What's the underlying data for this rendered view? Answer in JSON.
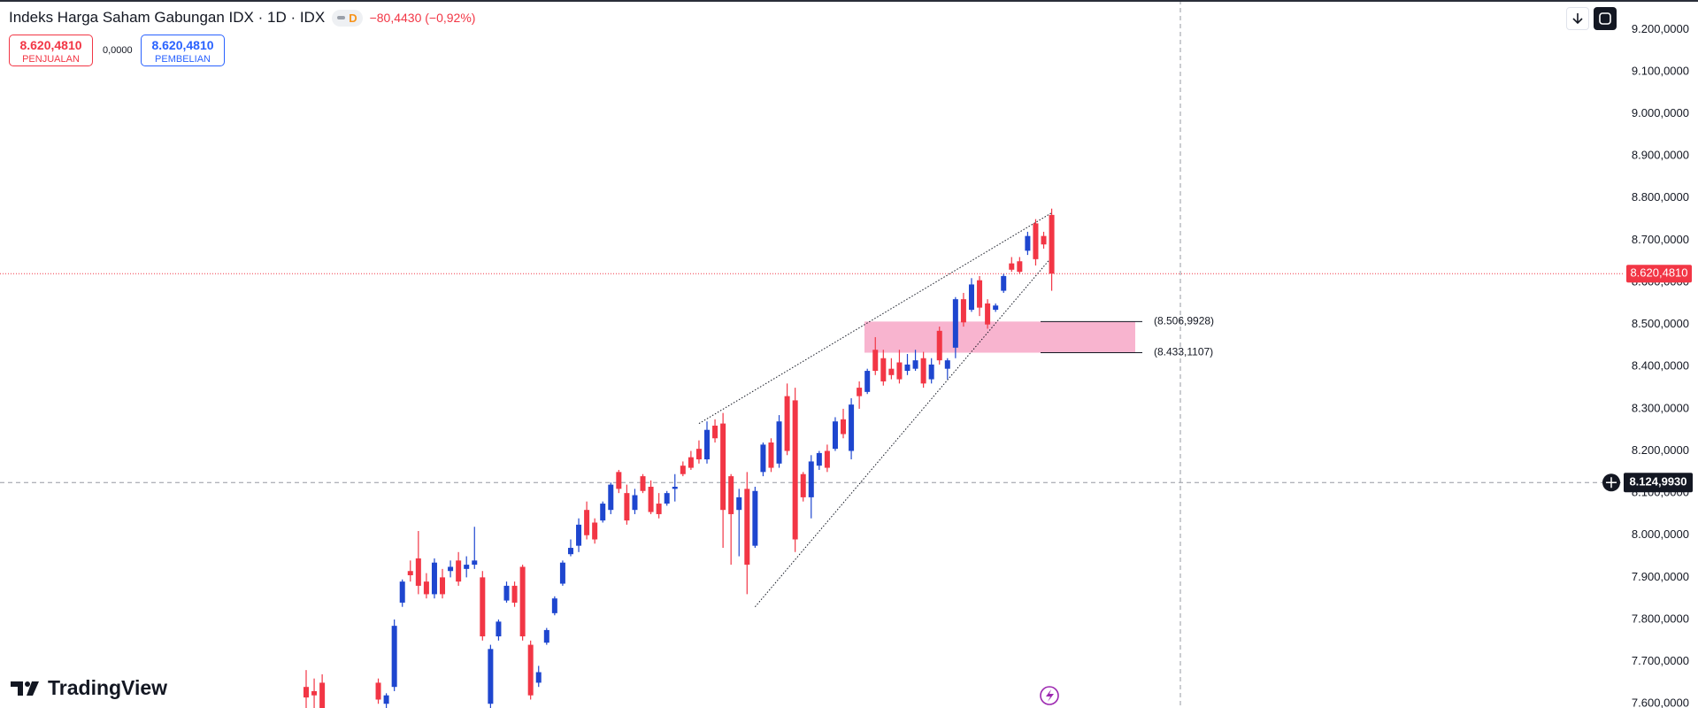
{
  "header": {
    "title": "Indeks Harga Saham Gabungan IDX · 1D · IDX",
    "badge": "D",
    "change": "−80,4430 (−0,92%)",
    "sell": {
      "price": "8.620,4810",
      "label": "PENJUALAN"
    },
    "spread": "0,0000",
    "buy": {
      "price": "8.620,4810",
      "label": "PEMBELIAN"
    }
  },
  "logo": "TradingView",
  "chart_data": {
    "type": "candlestick",
    "open": [
      7640,
      7630,
      7650,
      null,
      null,
      null,
      null,
      null,
      null,
      7650,
      7600,
      7640,
      7840,
      7915,
      7945,
      7890,
      7860,
      7900,
      7915,
      7940,
      7920,
      7930,
      7900,
      7600,
      7760,
      7845,
      7880,
      7925,
      7740,
      7650,
      7745,
      7815,
      7885,
      7955,
      7975,
      8060,
      8030,
      8035,
      8060,
      8150,
      8100,
      8060,
      8140,
      8115,
      8075,
      8075,
      8110,
      8165,
      8185,
      8205,
      8180,
      8260,
      8265,
      8140,
      8060,
      8110,
      7975,
      8150,
      8220,
      8170,
      8330,
      8320,
      8145,
      8090,
      8165,
      8200,
      8205,
      8275,
      8200,
      8350,
      8340,
      8440,
      8420,
      8395,
      8410,
      8390,
      8395,
      8420,
      8370,
      8485,
      8395,
      8445,
      8560,
      8535,
      8605,
      8550,
      8535,
      8580,
      8645,
      8650,
      8675,
      8740,
      8710,
      8760
    ],
    "high": [
      7680,
      7660,
      7670,
      null,
      null,
      null,
      null,
      null,
      null,
      7660,
      7625,
      7800,
      7895,
      7940,
      8010,
      7910,
      7945,
      7920,
      7940,
      7960,
      7950,
      8020,
      7915,
      7740,
      7800,
      7890,
      7890,
      7930,
      7750,
      7690,
      7780,
      7855,
      7940,
      7990,
      8040,
      8080,
      8040,
      8080,
      8125,
      8155,
      8120,
      8110,
      8145,
      8130,
      8100,
      8105,
      8145,
      8175,
      8200,
      8225,
      8270,
      8275,
      8290,
      8145,
      8110,
      8150,
      8115,
      8220,
      8230,
      8285,
      8360,
      8350,
      8150,
      8190,
      8200,
      8215,
      8280,
      8300,
      8325,
      8365,
      8395,
      8470,
      8440,
      8420,
      8440,
      8430,
      8440,
      8435,
      8420,
      8495,
      8420,
      8565,
      8575,
      8610,
      8615,
      8560,
      8550,
      8620,
      8660,
      8660,
      8720,
      8750,
      8720,
      8775
    ],
    "low": [
      7590,
      7580,
      7560,
      null,
      null,
      null,
      null,
      null,
      null,
      7600,
      7590,
      7630,
      7830,
      7890,
      7860,
      7850,
      7850,
      7850,
      7900,
      7880,
      7900,
      7920,
      7750,
      7590,
      7750,
      7840,
      7830,
      7750,
      7610,
      7640,
      7740,
      7810,
      7880,
      7950,
      7960,
      7990,
      7980,
      8030,
      8050,
      8100,
      8025,
      8050,
      8100,
      8050,
      8040,
      8070,
      8080,
      8140,
      8155,
      8170,
      8170,
      8220,
      7970,
      7930,
      7950,
      7860,
      7970,
      8140,
      8150,
      8160,
      8190,
      7960,
      8080,
      8040,
      8155,
      8150,
      8200,
      8230,
      8180,
      8300,
      8335,
      8380,
      8355,
      8370,
      8360,
      8380,
      8390,
      8350,
      8360,
      8405,
      8370,
      8420,
      8495,
      8530,
      8520,
      8490,
      8530,
      8575,
      8625,
      8620,
      8665,
      8640,
      8680,
      8580
    ],
    "close": [
      7615,
      7620,
      7580,
      null,
      null,
      null,
      null,
      null,
      null,
      7610,
      7620,
      7785,
      7890,
      7905,
      7880,
      7860,
      7935,
      7860,
      7925,
      7890,
      7930,
      7940,
      7760,
      7730,
      7795,
      7880,
      7840,
      7760,
      7620,
      7675,
      7775,
      7850,
      7935,
      7970,
      8025,
      8000,
      7990,
      8075,
      8120,
      8110,
      8035,
      8095,
      8105,
      8055,
      8050,
      8100,
      8115,
      8145,
      8160,
      8180,
      8250,
      8230,
      8060,
      8050,
      8090,
      7930,
      8105,
      8215,
      8160,
      8270,
      8200,
      7990,
      8090,
      8175,
      8195,
      8160,
      8270,
      8240,
      8310,
      8330,
      8390,
      8390,
      8365,
      8380,
      8370,
      8405,
      8415,
      8360,
      8405,
      8415,
      8415,
      8560,
      8505,
      8595,
      8540,
      8500,
      8545,
      8615,
      8630,
      8625,
      8710,
      8655,
      8690,
      8620.481
    ],
    "up_color": "#1e46cf",
    "down_color": "#f23645",
    "ylim": [
      7590,
      9270
    ],
    "yticks": [
      {
        "value": 7600,
        "label": "7.600,0000"
      },
      {
        "value": 7700,
        "label": "7.700,0000"
      },
      {
        "value": 7800,
        "label": "7.800,0000"
      },
      {
        "value": 7900,
        "label": "7.900,0000"
      },
      {
        "value": 8000,
        "label": "8.000,0000"
      },
      {
        "value": 8100,
        "label": "8.100,0000"
      },
      {
        "value": 8200,
        "label": "8.200,0000"
      },
      {
        "value": 8300,
        "label": "8.300,0000"
      },
      {
        "value": 8400,
        "label": "8.400,0000"
      },
      {
        "value": 8500,
        "label": "8.500,0000"
      },
      {
        "value": 8600,
        "label": "8.600,0000"
      },
      {
        "value": 8700,
        "label": "8.700,0000"
      },
      {
        "value": 8800,
        "label": "8.800,0000"
      },
      {
        "value": 8900,
        "label": "8.900,0000"
      },
      {
        "value": 9000,
        "label": "9.000,0000"
      },
      {
        "value": 9100,
        "label": "9.100,0000"
      },
      {
        "value": 9200,
        "label": "9.200,0000"
      }
    ],
    "last_price": {
      "value": 8620.481,
      "label": "8.620,4810"
    },
    "crosshair": {
      "value": 8124.993,
      "label": "8.124,9930"
    },
    "levels": [
      {
        "value": 8506.9928,
        "label": "(8.506,9928)"
      },
      {
        "value": 8433.1107,
        "label": "(8.433,1107)"
      }
    ],
    "trendlines": [
      {
        "x": [
          49,
          93
        ],
        "values": [
          8265,
          8765
        ]
      },
      {
        "x": [
          56,
          93
        ],
        "values": [
          7830,
          8660
        ]
      }
    ]
  }
}
